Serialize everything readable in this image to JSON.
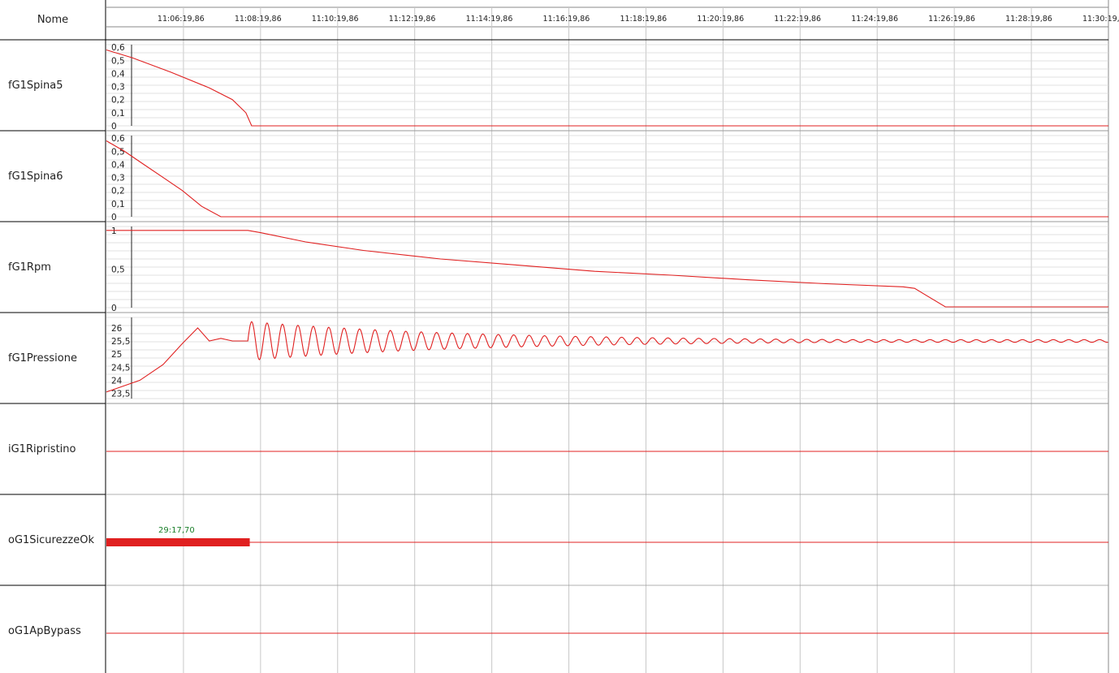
{
  "header": {
    "name_column": "Nome"
  },
  "colors": {
    "trace": "#e02020",
    "marker_text": "#1a7f2a",
    "grid": "#c8c8c8",
    "border": "#000000"
  },
  "chart_data": {
    "type": "line",
    "x_unit": "mm:ss,ff (minutes after 11:00)",
    "x_ticks": [
      "11:06:19,86",
      "11:08:19,86",
      "11:10:19,86",
      "11:12:19,86",
      "11:14:19,86",
      "11:16:19,86",
      "11:18:19,86",
      "11:20:19,86",
      "11:22:19,86",
      "11:24:19,86",
      "11:26:19,86",
      "11:28:19,86",
      "11:30:19,86"
    ],
    "x_tick_minutes": [
      6.33,
      8.33,
      10.33,
      12.33,
      14.33,
      16.33,
      18.33,
      20.33,
      22.33,
      24.33,
      26.33,
      28.33,
      30.33
    ],
    "xlim_minutes": [
      4.33,
      30.33
    ],
    "grid": true,
    "channels": [
      {
        "name": "fG1Spina5",
        "kind": "analog",
        "ylim": [
          0,
          0.62
        ],
        "y_ticks": [
          "0,6",
          "0,5",
          "0,4",
          "0,3",
          "0,2",
          "0,1",
          "0"
        ],
        "y_tick_values": [
          0.6,
          0.5,
          0.4,
          0.3,
          0.2,
          0.1,
          0
        ],
        "x": [
          4.33,
          5.0,
          6.0,
          7.0,
          7.6,
          7.95,
          8.1,
          30.33
        ],
        "y": [
          0.58,
          0.52,
          0.41,
          0.29,
          0.2,
          0.1,
          0.0,
          0.0
        ]
      },
      {
        "name": "fG1Spina6",
        "kind": "analog",
        "ylim": [
          0,
          0.62
        ],
        "y_ticks": [
          "0,6",
          "0,5",
          "0,4",
          "0,3",
          "0,2",
          "0,1",
          "0"
        ],
        "y_tick_values": [
          0.6,
          0.5,
          0.4,
          0.3,
          0.2,
          0.1,
          0
        ],
        "x": [
          4.33,
          4.8,
          5.3,
          5.8,
          6.3,
          6.8,
          7.3,
          30.33
        ],
        "y": [
          0.58,
          0.5,
          0.4,
          0.3,
          0.2,
          0.08,
          0.0,
          0.0
        ]
      },
      {
        "name": "fG1Rpm",
        "kind": "analog",
        "ylim": [
          0,
          1.05
        ],
        "y_ticks": [
          "1",
          "0,5",
          "0"
        ],
        "y_tick_values": [
          1,
          0.5,
          0
        ],
        "x": [
          4.33,
          8.0,
          8.33,
          9.5,
          11.0,
          13.0,
          15.0,
          17.0,
          19.0,
          21.0,
          23.0,
          25.0,
          25.3,
          26.1,
          30.33
        ],
        "y": [
          1.0,
          1.0,
          0.97,
          0.85,
          0.74,
          0.63,
          0.55,
          0.47,
          0.42,
          0.36,
          0.31,
          0.27,
          0.25,
          0.01,
          0.01
        ]
      },
      {
        "name": "fG1Pressione",
        "kind": "analog",
        "ylim": [
          23.3,
          26.4
        ],
        "y_ticks": [
          "26",
          "25,5",
          "25",
          "24,5",
          "24",
          "23,5"
        ],
        "y_tick_values": [
          26,
          25.5,
          25,
          24.5,
          24,
          23.5
        ],
        "x": [
          4.33,
          5.2,
          5.8,
          6.3,
          6.7,
          7.0,
          7.3,
          7.6,
          8.0,
          30.33
        ],
        "y": [
          23.55,
          24.0,
          24.6,
          25.4,
          26.0,
          25.5,
          25.6,
          25.5,
          25.5,
          25.5
        ],
        "oscillation": {
          "start_minutes": 8.0,
          "period_minutes": 0.4,
          "initial_amplitude": 0.75,
          "final_amplitude": 0.05
        }
      },
      {
        "name": "iG1Ripristino",
        "kind": "digital",
        "segments": []
      },
      {
        "name": "oG1SicurezzeOk",
        "kind": "digital",
        "segments": [
          {
            "start_minutes": 4.33,
            "end_minutes": 8.05,
            "label": "29:17,70"
          }
        ]
      },
      {
        "name": "oG1ApBypass",
        "kind": "digital",
        "segments": []
      }
    ]
  }
}
